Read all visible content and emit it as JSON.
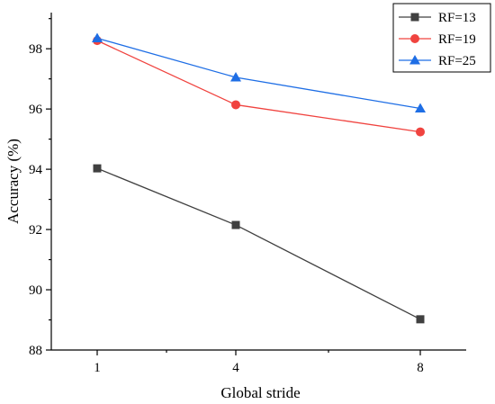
{
  "chart_data": {
    "type": "line",
    "x": [
      1,
      4,
      8
    ],
    "x_tick_labels": [
      "1",
      "4",
      "8"
    ],
    "xlabel": "Global stride",
    "ylabel": "Accuracy (%)",
    "ylim": [
      88,
      99.2
    ],
    "y_ticks": [
      88,
      90,
      92,
      94,
      96,
      98
    ],
    "y_tick_labels": [
      "88",
      "90",
      "92",
      "94",
      "96",
      "98"
    ],
    "grid": false,
    "legend_position": "top-right",
    "series": [
      {
        "name": "RF=13",
        "values": [
          94.03,
          92.15,
          89.02
        ],
        "color": "#404040",
        "marker": "square"
      },
      {
        "name": "RF=19",
        "values": [
          98.27,
          96.14,
          95.24
        ],
        "color": "#f0433f",
        "marker": "circle"
      },
      {
        "name": "RF=25",
        "values": [
          98.35,
          97.05,
          96.02
        ],
        "color": "#1e6ee5",
        "marker": "triangle"
      }
    ]
  }
}
